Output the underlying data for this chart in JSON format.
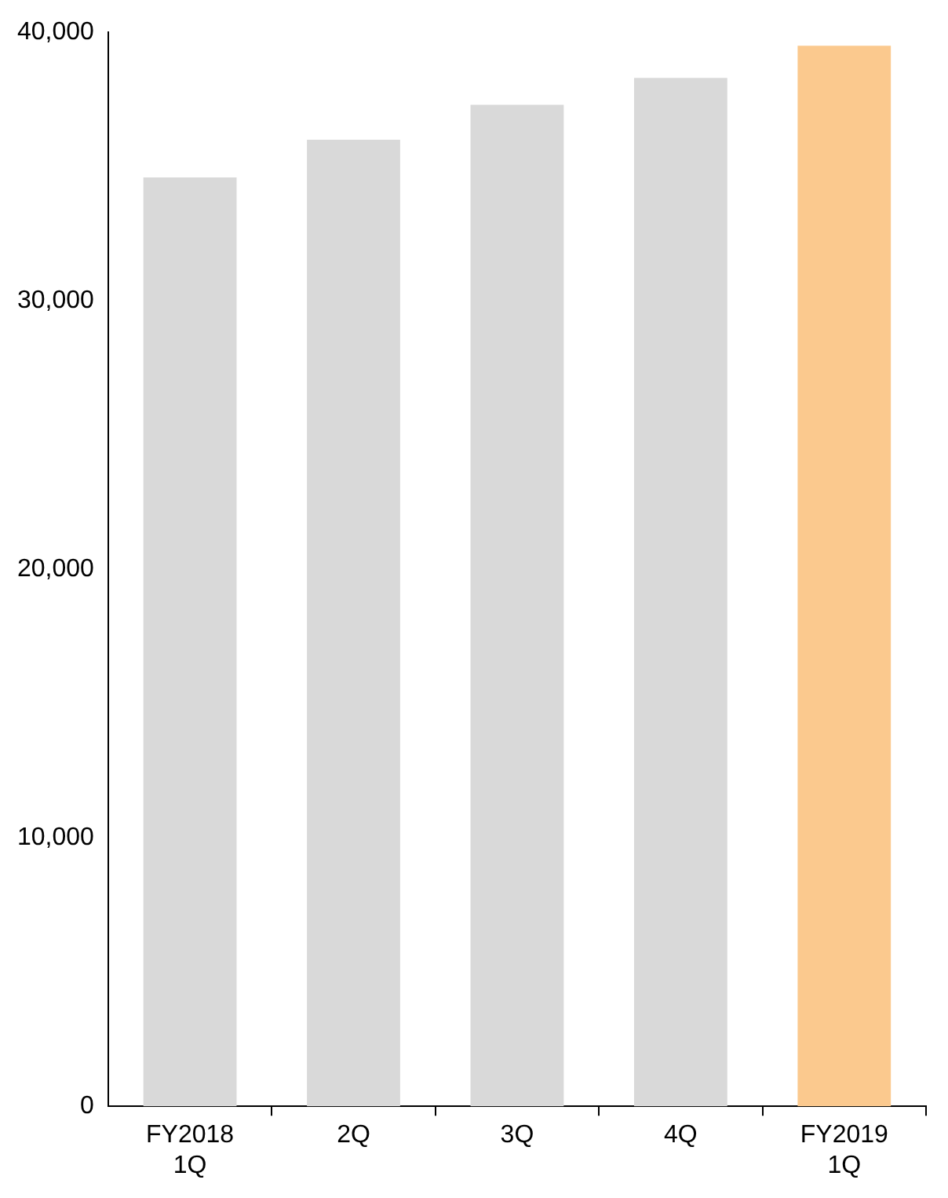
{
  "chart_data": {
    "type": "bar",
    "categories": [
      "FY2018\n1Q",
      "2Q",
      "3Q",
      "4Q",
      "FY2019\n1Q"
    ],
    "values": [
      34600,
      36000,
      37300,
      38300,
      39500
    ],
    "colors": [
      "#d9d9d9",
      "#d9d9d9",
      "#d9d9d9",
      "#d9d9d9",
      "#fbc98e"
    ],
    "ylim": [
      0,
      40000
    ],
    "yticks": [
      0,
      {
        "value": 10000,
        "label": "10,000"
      },
      {
        "value": 20000,
        "label": "20,000"
      },
      {
        "value": 30000,
        "label": "30,000"
      },
      {
        "value": 40000,
        "label": "40,000"
      }
    ],
    "grid": false,
    "legend": false
  }
}
